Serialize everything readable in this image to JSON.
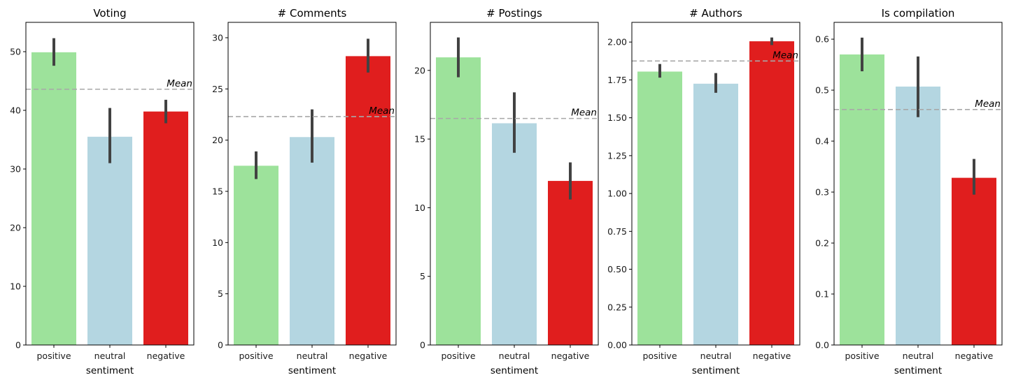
{
  "chart_data": [
    {
      "type": "bar",
      "title": "Voting",
      "xlabel": "sentiment",
      "ylabel": "",
      "categories": [
        "positive",
        "neutral",
        "negative"
      ],
      "values": [
        49.9,
        35.5,
        39.8
      ],
      "error_bars": [
        [
          47.6,
          52.3
        ],
        [
          31.0,
          40.4
        ],
        [
          37.8,
          41.8
        ]
      ],
      "ylim": [
        0,
        55
      ],
      "yticks": [
        0,
        10,
        20,
        30,
        40,
        50
      ],
      "ytick_labels": [
        "0",
        "10",
        "20",
        "30",
        "40",
        "50"
      ],
      "mean_line": 43.6,
      "mean_label": "Mean",
      "grid": false
    },
    {
      "type": "bar",
      "title": "# Comments",
      "xlabel": "sentiment",
      "ylabel": "",
      "categories": [
        "positive",
        "neutral",
        "negative"
      ],
      "values": [
        17.5,
        20.3,
        28.2
      ],
      "error_bars": [
        [
          16.2,
          18.9
        ],
        [
          17.8,
          23.0
        ],
        [
          26.6,
          29.9
        ]
      ],
      "ylim": [
        0,
        31.5
      ],
      "yticks": [
        0,
        5,
        10,
        15,
        20,
        25,
        30
      ],
      "ytick_labels": [
        "0",
        "5",
        "10",
        "15",
        "20",
        "25",
        "30"
      ],
      "mean_line": 22.3,
      "mean_label": "Mean",
      "grid": false
    },
    {
      "type": "bar",
      "title": "# Postings",
      "xlabel": "sentiment",
      "ylabel": "",
      "categories": [
        "positive",
        "neutral",
        "negative"
      ],
      "values": [
        20.95,
        16.15,
        11.95
      ],
      "error_bars": [
        [
          19.5,
          22.4
        ],
        [
          14.0,
          18.4
        ],
        [
          10.6,
          13.3
        ]
      ],
      "ylim": [
        0,
        23.5
      ],
      "yticks": [
        0,
        5,
        10,
        15,
        20
      ],
      "ytick_labels": [
        "0",
        "5",
        "10",
        "15",
        "20"
      ],
      "mean_line": 16.5,
      "mean_label": "Mean",
      "grid": false
    },
    {
      "type": "bar",
      "title": "# Authors",
      "xlabel": "sentiment",
      "ylabel": "",
      "categories": [
        "positive",
        "neutral",
        "negative"
      ],
      "values": [
        1.805,
        1.725,
        2.005
      ],
      "error_bars": [
        [
          1.765,
          1.855
        ],
        [
          1.665,
          1.795
        ],
        [
          1.98,
          2.03
        ]
      ],
      "ylim": [
        0,
        2.13
      ],
      "yticks": [
        0,
        0.25,
        0.5,
        0.75,
        1.0,
        1.25,
        1.5,
        1.75,
        2.0
      ],
      "ytick_labels": [
        "0.00",
        "0.25",
        "0.50",
        "0.75",
        "1.00",
        "1.25",
        "1.50",
        "1.75",
        "2.00"
      ],
      "mean_line": 1.875,
      "mean_label": "Mean",
      "grid": false
    },
    {
      "type": "bar",
      "title": "Is compilation",
      "xlabel": "sentiment",
      "ylabel": "",
      "categories": [
        "positive",
        "neutral",
        "negative"
      ],
      "values": [
        0.57,
        0.507,
        0.328
      ],
      "error_bars": [
        [
          0.537,
          0.603
        ],
        [
          0.447,
          0.566
        ],
        [
          0.295,
          0.365
        ]
      ],
      "ylim": [
        0,
        0.633
      ],
      "yticks": [
        0,
        0.1,
        0.2,
        0.3,
        0.4,
        0.5,
        0.6
      ],
      "ytick_labels": [
        "0.0",
        "0.1",
        "0.2",
        "0.3",
        "0.4",
        "0.5",
        "0.6"
      ],
      "mean_line": 0.462,
      "mean_label": "Mean",
      "grid": false
    }
  ],
  "colors": {
    "positive": "#9de29b",
    "neutral": "#b4d6e1",
    "negative": "#e01e1e",
    "error_bar": "#424242",
    "mean_line": "#a8a8a8"
  }
}
